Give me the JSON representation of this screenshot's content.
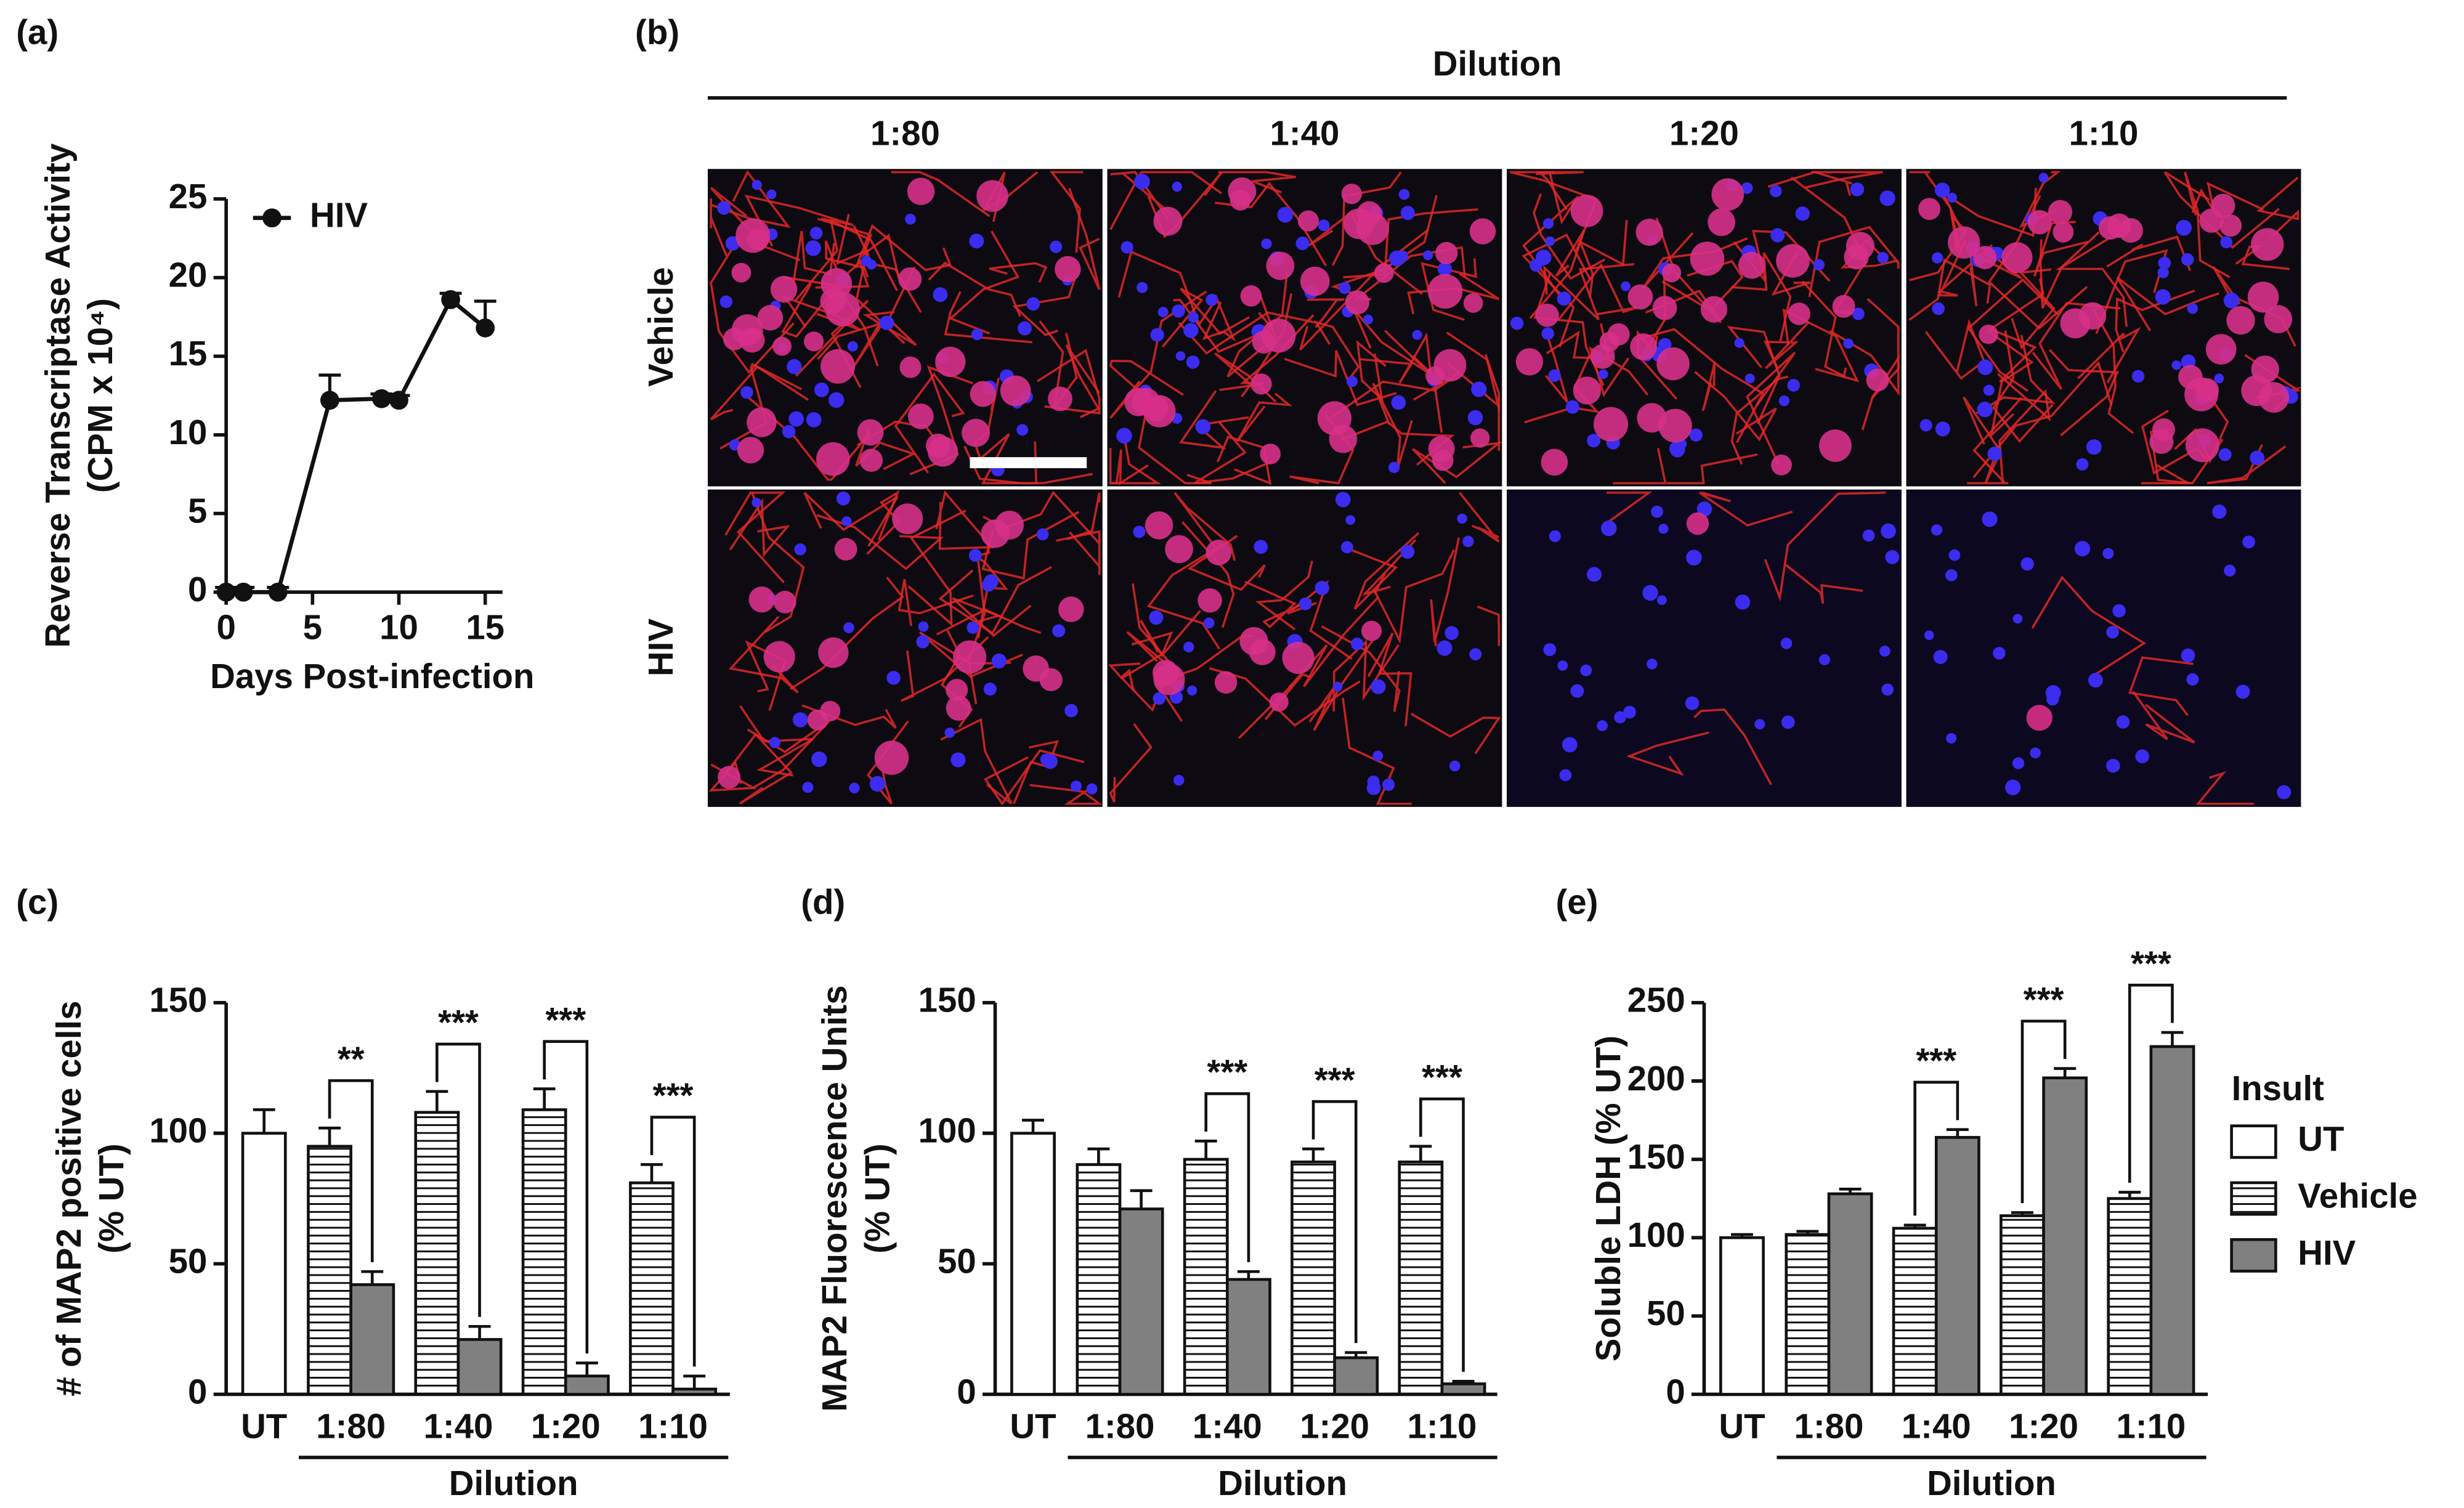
{
  "chart_data": [
    {
      "type": "line",
      "panel_label": "(a)",
      "ylabel": [
        "Reverse Transcriptase Activity",
        "(CPM x 10⁴)"
      ],
      "xlabel": "Days Post-infection",
      "x": [
        0,
        1,
        3,
        6,
        9,
        10,
        13,
        15
      ],
      "series": [
        {
          "name": "HIV",
          "color": "#111111",
          "values": [
            0,
            0,
            0,
            12.2,
            12.3,
            12.2,
            18.6,
            16.8
          ],
          "errors": [
            0.3,
            0.3,
            0.3,
            1.6,
            0.3,
            0.3,
            0.4,
            1.7
          ]
        }
      ],
      "xlim": [
        0,
        16
      ],
      "xticks": [
        0,
        5,
        10,
        15
      ],
      "ylim": [
        0,
        25
      ],
      "yticks": [
        0,
        5,
        10,
        15,
        20,
        25
      ],
      "legend": "upper left"
    },
    {
      "type": "bar",
      "panel_label": "(c)",
      "ylabel": [
        "# of MAP2 positive cells",
        "(% UT)"
      ],
      "group_label": "Dilution",
      "categories": [
        "UT",
        "1:80",
        "1:40",
        "1:20",
        "1:10"
      ],
      "series": [
        {
          "name": "UT",
          "color": "#ffffff",
          "values": [
            100,
            null,
            null,
            null,
            null
          ],
          "errors": [
            9,
            null,
            null,
            null,
            null
          ]
        },
        {
          "name": "Vehicle",
          "color": "#ffffff",
          "pattern": "horizontal-lines",
          "values": [
            null,
            95,
            108,
            109,
            81
          ],
          "errors": [
            null,
            7,
            8,
            8,
            7
          ]
        },
        {
          "name": "HIV",
          "color": "#808080",
          "values": [
            null,
            42,
            21,
            7,
            2
          ],
          "errors": [
            null,
            5,
            5,
            5,
            5
          ]
        }
      ],
      "significance": [
        null,
        "**",
        "***",
        "***",
        "***"
      ],
      "ylim": [
        0,
        150
      ],
      "yticks": [
        0,
        50,
        100,
        150
      ]
    },
    {
      "type": "bar",
      "panel_label": "(d)",
      "ylabel": [
        "MAP2 Fluorescence Units",
        "(% UT)"
      ],
      "group_label": "Dilution",
      "categories": [
        "UT",
        "1:80",
        "1:40",
        "1:20",
        "1:10"
      ],
      "series": [
        {
          "name": "UT",
          "color": "#ffffff",
          "values": [
            100,
            null,
            null,
            null,
            null
          ],
          "errors": [
            5,
            null,
            null,
            null,
            null
          ]
        },
        {
          "name": "Vehicle",
          "color": "#ffffff",
          "pattern": "horizontal-lines",
          "values": [
            null,
            88,
            90,
            89,
            89
          ],
          "errors": [
            null,
            6,
            7,
            5,
            6
          ]
        },
        {
          "name": "HIV",
          "color": "#808080",
          "values": [
            null,
            71,
            44,
            14,
            4
          ],
          "errors": [
            null,
            7,
            3,
            2,
            1
          ]
        }
      ],
      "significance": [
        null,
        null,
        "***",
        "***",
        "***"
      ],
      "ylim": [
        0,
        150
      ],
      "yticks": [
        0,
        50,
        100,
        150
      ]
    },
    {
      "type": "bar",
      "panel_label": "(e)",
      "ylabel": [
        "Soluble LDH (% UT)"
      ],
      "group_label": "Dilution",
      "categories": [
        "UT",
        "1:80",
        "1:40",
        "1:20",
        "1:10"
      ],
      "series": [
        {
          "name": "UT",
          "color": "#ffffff",
          "values": [
            100,
            null,
            null,
            null,
            null
          ],
          "errors": [
            2,
            null,
            null,
            null,
            null
          ]
        },
        {
          "name": "Vehicle",
          "color": "#ffffff",
          "pattern": "horizontal-lines",
          "values": [
            null,
            102,
            106,
            114,
            125
          ],
          "errors": [
            null,
            2,
            2,
            2,
            4
          ]
        },
        {
          "name": "HIV",
          "color": "#808080",
          "values": [
            null,
            128,
            164,
            202,
            222
          ],
          "errors": [
            null,
            3,
            5,
            6,
            9
          ]
        }
      ],
      "significance": [
        null,
        null,
        "***",
        "***",
        "***"
      ],
      "ylim": [
        0,
        250
      ],
      "yticks": [
        0,
        50,
        100,
        150,
        200,
        250
      ],
      "legend": "right",
      "legend_title": "Insult"
    }
  ],
  "image_panel": {
    "label": "(b)",
    "header": "Dilution",
    "columns": [
      "1:80",
      "1:40",
      "1:20",
      "1:10"
    ],
    "rows": [
      "Vehicle",
      "HIV"
    ]
  }
}
